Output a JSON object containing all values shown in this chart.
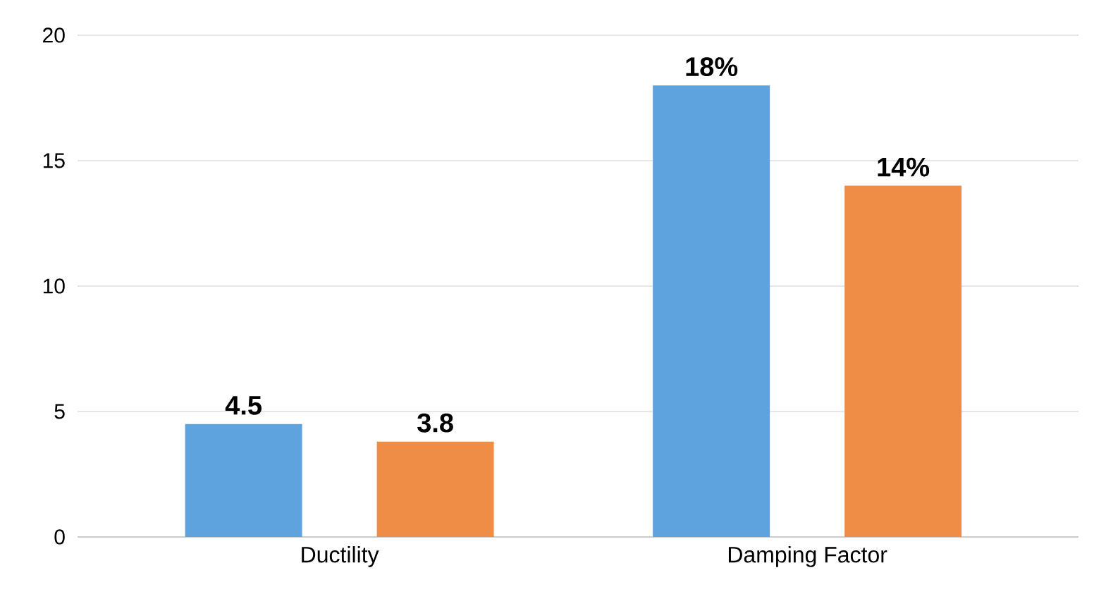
{
  "chart_data": {
    "type": "bar",
    "categories": [
      "Ductility",
      "Damping Factor"
    ],
    "series": [
      {
        "color": "#5fa3de",
        "values": [
          4.5,
          18
        ],
        "value_labels": [
          "4.5",
          "18%"
        ]
      },
      {
        "color": "#ef8c45",
        "values": [
          3.8,
          14
        ],
        "value_labels": [
          "3.8",
          "14%"
        ]
      }
    ],
    "ylim": [
      0,
      20
    ],
    "yticks": [
      0,
      5,
      10,
      15,
      20
    ],
    "grid": "y"
  }
}
